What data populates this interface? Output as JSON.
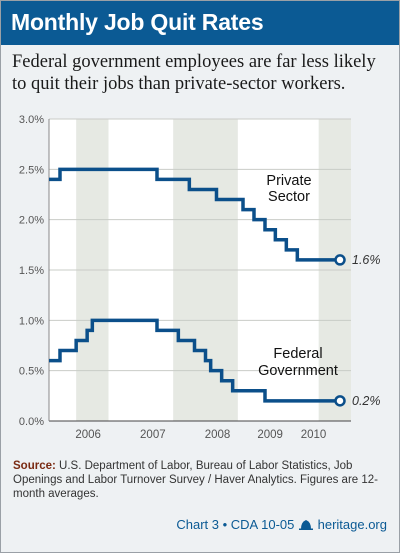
{
  "header": {
    "title": "Monthly Job Quit Rates",
    "subtitle": "Federal government employees are far less likely to quit their jobs than private-sector workers."
  },
  "source": {
    "label": "Source:",
    "text": "U.S. Department of Labor, Bureau of Labor Statistics, Job Openings and Labor Turnover Survey / Haver Analytics. Figures are 12-month averages."
  },
  "footer": {
    "chart_ref": "Chart 3 • CDA 10-05",
    "site": "heritage.org"
  },
  "colors": {
    "header": "#0b5a94",
    "line": "#0b4f8a",
    "band": "#e6e9e3",
    "source_label": "#7a2a12"
  },
  "chart_data": {
    "type": "line",
    "x_unit": "year",
    "xlim": [
      2005.58,
      2010.25
    ],
    "ylim": [
      0,
      3.0
    ],
    "y_ticks": [
      "0.0%",
      "0.5%",
      "1.0%",
      "1.5%",
      "2.0%",
      "2.5%",
      "3.0%"
    ],
    "y_tick_values": [
      0,
      0.5,
      1.0,
      1.5,
      2.0,
      2.5,
      3.0
    ],
    "x_ticks": [
      "2006",
      "2007",
      "2008",
      "2009",
      "2010"
    ],
    "x_tick_positions": [
      2006.0,
      2007.0,
      2008.0,
      2009.0,
      2009.67
    ],
    "shaded_bands": [
      [
        2006.0,
        2006.5
      ],
      [
        2007.5,
        2008.5
      ],
      [
        2009.75,
        2010.25
      ]
    ],
    "series": [
      {
        "label_lines": [
          "Private",
          "Sector"
        ],
        "end_label": "1.6%",
        "x": [
          2005.58,
          2005.67,
          2005.75,
          2005.83,
          2005.92,
          2006.0,
          2006.08,
          2006.17,
          2006.25,
          2006.33,
          2006.42,
          2006.5,
          2006.58,
          2006.67,
          2006.75,
          2006.83,
          2006.92,
          2007.0,
          2007.08,
          2007.17,
          2007.25,
          2007.33,
          2007.42,
          2007.5,
          2007.58,
          2007.67,
          2007.75,
          2007.83,
          2007.92,
          2008.0,
          2008.08,
          2008.17,
          2008.25,
          2008.33,
          2008.42,
          2008.5,
          2008.58,
          2008.67,
          2008.75,
          2008.83,
          2008.92,
          2009.0,
          2009.08,
          2009.17,
          2009.25,
          2009.33,
          2009.42,
          2009.5,
          2009.58,
          2009.67,
          2009.75,
          2009.83,
          2009.92,
          2010.0,
          2010.08
        ],
        "y": [
          2.4,
          2.4,
          2.5,
          2.5,
          2.5,
          2.5,
          2.5,
          2.5,
          2.5,
          2.5,
          2.5,
          2.5,
          2.5,
          2.5,
          2.5,
          2.5,
          2.5,
          2.5,
          2.5,
          2.5,
          2.4,
          2.4,
          2.4,
          2.4,
          2.4,
          2.4,
          2.3,
          2.3,
          2.3,
          2.3,
          2.3,
          2.2,
          2.2,
          2.2,
          2.2,
          2.2,
          2.1,
          2.1,
          2.0,
          2.0,
          1.9,
          1.9,
          1.8,
          1.8,
          1.7,
          1.7,
          1.6,
          1.6,
          1.6,
          1.6,
          1.6,
          1.6,
          1.6,
          1.6,
          1.6
        ]
      },
      {
        "label_lines": [
          "Federal",
          "Government"
        ],
        "end_label": "0.2%",
        "x": [
          2005.58,
          2005.67,
          2005.75,
          2005.83,
          2005.92,
          2006.0,
          2006.08,
          2006.17,
          2006.25,
          2006.33,
          2006.42,
          2006.5,
          2006.58,
          2006.67,
          2006.75,
          2006.83,
          2006.92,
          2007.0,
          2007.08,
          2007.17,
          2007.25,
          2007.33,
          2007.42,
          2007.5,
          2007.58,
          2007.67,
          2007.75,
          2007.83,
          2007.92,
          2008.0,
          2008.08,
          2008.17,
          2008.25,
          2008.33,
          2008.42,
          2008.5,
          2008.58,
          2008.67,
          2008.75,
          2008.83,
          2008.92,
          2009.0,
          2009.08,
          2009.17,
          2009.25,
          2009.33,
          2009.42,
          2009.5,
          2009.58,
          2009.67,
          2009.75,
          2009.83,
          2009.92,
          2010.0,
          2010.08
        ],
        "y": [
          0.6,
          0.6,
          0.7,
          0.7,
          0.7,
          0.8,
          0.8,
          0.9,
          1.0,
          1.0,
          1.0,
          1.0,
          1.0,
          1.0,
          1.0,
          1.0,
          1.0,
          1.0,
          1.0,
          1.0,
          0.9,
          0.9,
          0.9,
          0.9,
          0.8,
          0.8,
          0.8,
          0.7,
          0.7,
          0.6,
          0.5,
          0.5,
          0.4,
          0.4,
          0.3,
          0.3,
          0.3,
          0.3,
          0.3,
          0.3,
          0.2,
          0.2,
          0.2,
          0.2,
          0.2,
          0.2,
          0.2,
          0.2,
          0.2,
          0.2,
          0.2,
          0.2,
          0.2,
          0.2,
          0.2
        ]
      }
    ]
  }
}
